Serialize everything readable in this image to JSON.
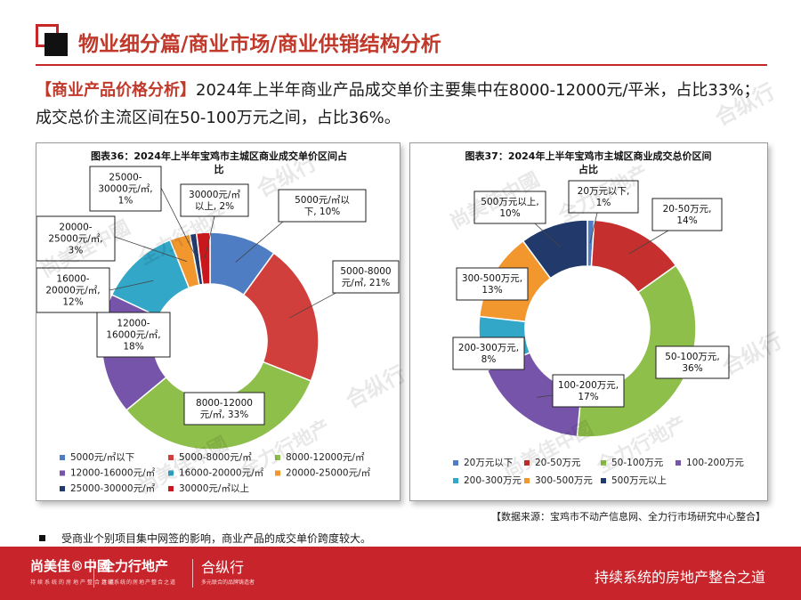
{
  "header": {
    "title": "物业细分篇/商业市场/商业供销结构分析"
  },
  "summary": {
    "tag": "【商业产品价格分析】",
    "text": "2024年上半年商业产品成交单价主要集中在8000-12000元/平米，占比33%；成交总价主流区间在50-100万元之间，占比36%。"
  },
  "chart_data": [
    {
      "type": "pie",
      "variant": "donut",
      "title_line1": "图表36：2024年上半年宝鸡市主城区商业成交单价区间占",
      "title_line2": "比",
      "categories": [
        "5000元/㎡以下",
        "5000-8000元/㎡",
        "8000-12000元/㎡",
        "12000-16000元/㎡",
        "16000-20000元/㎡",
        "20000-25000元/㎡",
        "25000-30000元/㎡",
        "30000元/㎡以上"
      ],
      "values": [
        10,
        21,
        33,
        18,
        12,
        3,
        1,
        2
      ],
      "unit": "%",
      "colors": [
        "#4e7dc4",
        "#d13f3c",
        "#8ebf4a",
        "#7554a9",
        "#33a7c7",
        "#f2962e",
        "#213a6b",
        "#c8181d"
      ],
      "data_labels": [
        [
          "5000元/㎡以",
          "下, 10%"
        ],
        [
          "5000-8000",
          "元/㎡, 21%"
        ],
        [
          "8000-12000",
          "元/㎡, 33%"
        ],
        [
          "12000-",
          "16000元/㎡,",
          "18%"
        ],
        [
          "16000-",
          "20000元/㎡,",
          "12%"
        ],
        [
          "20000-",
          "25000元/㎡,",
          "3%"
        ],
        [
          "25000-",
          "30000元/㎡,",
          "1%"
        ],
        [
          "30000元/㎡",
          "以上, 2%"
        ]
      ],
      "legend_position": "bottom"
    },
    {
      "type": "pie",
      "variant": "donut",
      "title_line1": "图表37：2024年上半年宝鸡市主城区商业成交总价区间",
      "title_line2": "占比",
      "categories": [
        "20万元以下",
        "20-50万元",
        "50-100万元",
        "100-200万元",
        "200-300万元",
        "300-500万元",
        "500万元以上"
      ],
      "values": [
        1,
        14,
        36,
        17,
        8,
        13,
        10
      ],
      "unit": "%",
      "colors": [
        "#4e7dc4",
        "#c5302f",
        "#8ebf4a",
        "#7554a9",
        "#33a7c7",
        "#f2962e",
        "#213a6b"
      ],
      "data_labels": [
        [
          "20万元以下,",
          "1%"
        ],
        [
          "20-50万元,",
          "14%"
        ],
        [
          "50-100万元,",
          "36%"
        ],
        [
          "100-200万元,",
          "17%"
        ],
        [
          "200-300万元,",
          "8%"
        ],
        [
          "300-500万元,",
          "13%"
        ],
        [
          "500万元以上,",
          "10%"
        ]
      ],
      "legend_position": "bottom"
    }
  ],
  "source_note": "【数据来源：宝鸡市不动产信息网、全力行市场研究中心整合】",
  "bullet_note": "受商业个别项目集中网签的影响，商业产品的成交单价跨度较大。",
  "footer": {
    "brand1": "尚美佳®中國",
    "brand1_sub": "持续系统的房地产整合之道",
    "brand2": "全力行地产",
    "brand2_sub": "持续系统的房地产整合之道",
    "brand3": "合纵行",
    "brand3_sub": "多元联合的品牌铸造者",
    "slogan": "持续系统的房地产整合之道"
  },
  "watermarks": [
    "尚美佳中國",
    "全力行地产",
    "合纵行"
  ]
}
